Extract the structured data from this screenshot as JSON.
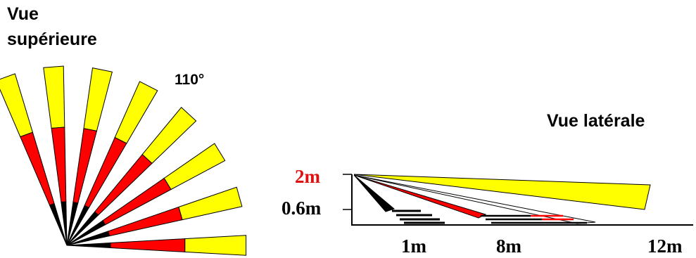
{
  "top_view": {
    "title_line1": "Vue",
    "title_line2": "supérieure",
    "angle": "110°"
  },
  "side_view": {
    "title": "Vue latérale",
    "heights": [
      "2m",
      "0.6m"
    ],
    "distances": [
      "1m",
      "8m",
      "12m"
    ]
  },
  "colors": {
    "far_zone": "#ffff00",
    "mid_zone": "#ff0000",
    "near_zone": "#000000",
    "height_2m_label": "#e01010"
  }
}
